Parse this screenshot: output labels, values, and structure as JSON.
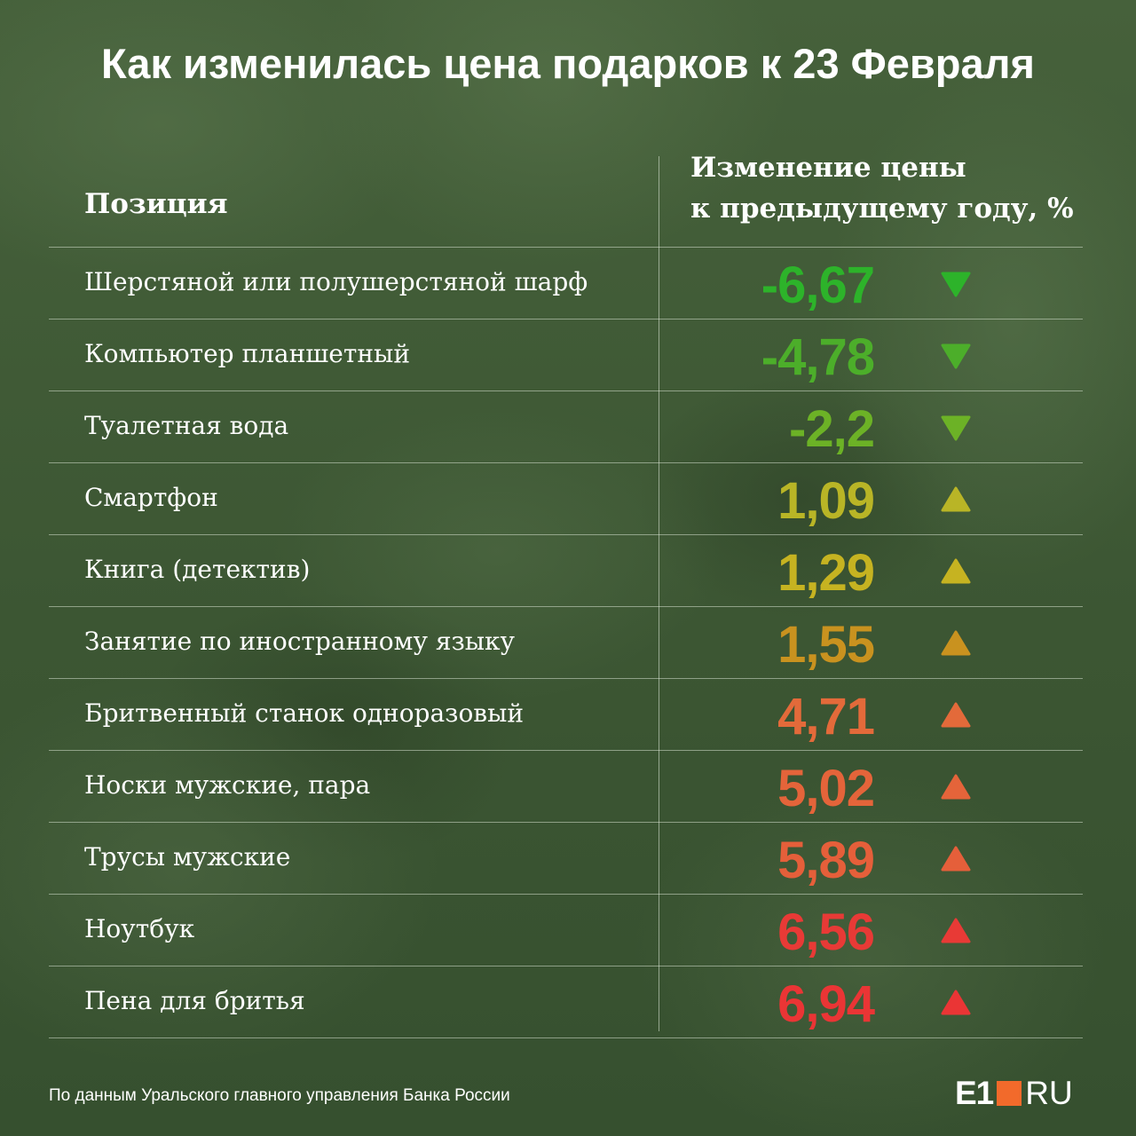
{
  "title": "Как изменилась цена подарков к 23 Февраля",
  "headers": {
    "position": "Позиция",
    "change_line1": "Изменение цены",
    "change_line2": "к предыдущему году, %"
  },
  "chart_data": {
    "type": "table",
    "title": "Как изменилась цена подарков к 23 Февраля",
    "columns": [
      "Позиция",
      "Изменение цены к предыдущему году, %"
    ],
    "rows": [
      {
        "label": "Шерстяной или полушерстяной шарф",
        "display": "-6,67",
        "value": -6.67,
        "direction": "down",
        "color": "#2db32a"
      },
      {
        "label": "Компьютер планшетный",
        "display": "-4,78",
        "value": -4.78,
        "direction": "down",
        "color": "#4cae2a"
      },
      {
        "label": "Туалетная вода",
        "display": "-2,2",
        "value": -2.2,
        "direction": "down",
        "color": "#6cb226"
      },
      {
        "label": "Смартфон",
        "display": "1,09",
        "value": 1.09,
        "direction": "up",
        "color": "#b9b526"
      },
      {
        "label": "Книга (детектив)",
        "display": "1,29",
        "value": 1.29,
        "direction": "up",
        "color": "#c6b321"
      },
      {
        "label": "Занятие по иностранному языку",
        "display": "1,55",
        "value": 1.55,
        "direction": "up",
        "color": "#c9921f"
      },
      {
        "label": "Бритвенный станок одноразовый",
        "display": "4,71",
        "value": 4.71,
        "direction": "up",
        "color": "#e36a3a"
      },
      {
        "label": "Носки мужские, пара",
        "display": "5,02",
        "value": 5.02,
        "direction": "up",
        "color": "#e4643a"
      },
      {
        "label": "Трусы мужские",
        "display": "5,89",
        "value": 5.89,
        "direction": "up",
        "color": "#e55f3a"
      },
      {
        "label": "Ноутбук",
        "display": "6,56",
        "value": 6.56,
        "direction": "up",
        "color": "#e83a36"
      },
      {
        "label": "Пена для бритья",
        "display": "6,94",
        "value": 6.94,
        "direction": "up",
        "color": "#ea3535"
      }
    ]
  },
  "footer": {
    "source": "По данным Уральского главного управления Банка России",
    "logo_e1": "E1",
    "logo_ru": "RU",
    "logo_accent": "#f26a2b"
  }
}
